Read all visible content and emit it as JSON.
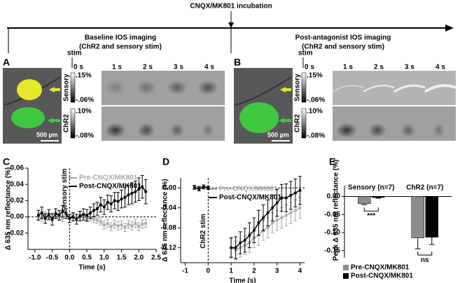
{
  "header": {
    "incubation": "CNQX/MK801 incubation",
    "baseline": "Baseline IOS imaging",
    "baseline_sub": "(ChR2 and sensory stim)",
    "post": "Post-antagonist IOS imaging",
    "post_sub": "(ChR2 and sensory stim)"
  },
  "panels": [
    {
      "letter": "A",
      "stim": "stim",
      "times": [
        "0 s",
        "1 s",
        "2 s",
        "3 s",
        "4 s"
      ],
      "scale": "500 µm",
      "rows": [
        {
          "name": "Sensory",
          "max": ".15%",
          "min": "-.06%"
        },
        {
          "name": "ChR2",
          "max": ".10%",
          "min": "-.08%"
        }
      ]
    },
    {
      "letter": "B",
      "stim": "stim",
      "times": [
        "0 s",
        "1 s",
        "2 s",
        "3 s",
        "4 s"
      ],
      "scale": "500 µm",
      "rows": [
        {
          "name": "Sensory",
          "max": ".15%",
          "min": "-.06%"
        },
        {
          "name": "ChR2",
          "max": ".10%",
          "min": "-.08%"
        }
      ]
    }
  ],
  "chart_data": [
    {
      "type": "line",
      "letter": "C",
      "x_label": "Time (s)",
      "y_label": "Δ 635 nm reflectance (%)",
      "annotation": "Sensory stim",
      "xlim": [
        -1.2,
        2.5
      ],
      "ylim": [
        -0.04,
        0.06
      ],
      "xticks": [
        {
          "value": -1,
          "label": "-1.0"
        },
        -0.5,
        {
          "value": 0,
          "label": "0.0"
        },
        0.5,
        {
          "value": 1,
          "label": "1.0"
        },
        1.5,
        {
          "value": 2,
          "label": "2.0"
        },
        2.5
      ],
      "yticks": [
        -0.02,
        {
          "value": 0,
          "label": "0.00"
        },
        0.02,
        0.04,
        0.06
      ],
      "x": [
        -0.9,
        -0.8,
        -0.7,
        -0.6,
        -0.5,
        -0.4,
        -0.3,
        -0.2,
        -0.1,
        0,
        0.1,
        0.2,
        0.3,
        0.4,
        0.5,
        0.6,
        0.7,
        0.8,
        0.9,
        1.0,
        1.1,
        1.2,
        1.3,
        1.4,
        1.5,
        1.6,
        1.7,
        1.8,
        1.9,
        2.0,
        2.1,
        2.2
      ],
      "series": [
        {
          "name": "Pre-CNQX/MK801",
          "color": "#aaaaaa",
          "values": [
            0.001,
            -0.002,
            0.002,
            0.0,
            -0.001,
            0.003,
            0.001,
            -0.002,
            0.002,
            0.0,
            0.001,
            -0.001,
            0.002,
            0.0,
            -0.002,
            -0.001,
            -0.003,
            -0.004,
            -0.006,
            -0.01,
            -0.008,
            -0.012,
            -0.009,
            -0.011,
            -0.01,
            -0.013,
            -0.009,
            -0.011,
            -0.008,
            -0.012,
            -0.009,
            -0.008
          ],
          "errors": [
            0.004,
            0.004,
            0.004,
            0.004,
            0.004,
            0.004,
            0.004,
            0.004,
            0.004,
            0.003,
            0.003,
            0.004,
            0.004,
            0.004,
            0.004,
            0.004,
            0.004,
            0.004,
            0.004,
            0.005,
            0.005,
            0.005,
            0.005,
            0.005,
            0.005,
            0.005,
            0.005,
            0.005,
            0.005,
            0.005,
            0.005,
            0.005
          ]
        },
        {
          "name": "Post-CNQX/MK801",
          "color": "#000000",
          "values": [
            0.002,
            0.005,
            -0.002,
            0.003,
            -0.003,
            0.004,
            0.002,
            0.007,
            0.004,
            -0.002,
            0.0,
            -0.003,
            0.001,
            0.003,
            0.002,
            0.005,
            0.008,
            0.01,
            0.015,
            0.012,
            0.018,
            0.016,
            0.02,
            0.019,
            0.022,
            0.024,
            0.027,
            0.029,
            0.031,
            0.034,
            0.037,
            0.031
          ],
          "errors": [
            0.006,
            0.007,
            0.006,
            0.006,
            0.007,
            0.006,
            0.006,
            0.007,
            0.006,
            0.005,
            0.005,
            0.006,
            0.006,
            0.007,
            0.007,
            0.007,
            0.008,
            0.008,
            0.009,
            0.009,
            0.009,
            0.01,
            0.01,
            0.011,
            0.011,
            0.012,
            0.012,
            0.013,
            0.013,
            0.014,
            0.014,
            0.015
          ]
        }
      ]
    },
    {
      "type": "line",
      "letter": "D",
      "x_label": "Time (s)",
      "y_label": "Δ 635 nm reflectance (%)",
      "annotation": "ChR2 stim",
      "xlim": [
        -1.2,
        4.2
      ],
      "ylim": [
        -0.15,
        0.02
      ],
      "xticks": [
        -1,
        0,
        1,
        2,
        3,
        4
      ],
      "yticks": [
        {
          "value": 0,
          "label": "0.00"
        },
        -0.04,
        -0.08,
        -0.12
      ],
      "x": [
        -0.6,
        -0.4,
        -0.2,
        0,
        0.5,
        1.0,
        1.2,
        1.4,
        1.6,
        1.8,
        2.0,
        2.2,
        2.4,
        2.6,
        2.8,
        3.0,
        3.2,
        3.4,
        3.6,
        3.8,
        4.0
      ],
      "series": [
        {
          "name": "Pre-CNQX/MK801",
          "color": "#aaaaaa",
          "values": [
            0.002,
            0.001,
            0.003,
            0.001,
            null,
            -0.12,
            -0.125,
            -0.12,
            -0.115,
            -0.11,
            -0.1,
            -0.095,
            -0.085,
            -0.08,
            -0.07,
            -0.065,
            -0.06,
            -0.055,
            -0.05,
            -0.045,
            -0.04
          ],
          "errors": [
            0.003,
            0.003,
            0.003,
            0.003,
            null,
            0.018,
            0.018,
            0.019,
            0.019,
            0.02,
            0.02,
            0.02,
            0.02,
            0.02,
            0.02,
            0.02,
            0.021,
            0.021,
            0.021,
            0.021,
            0.021
          ]
        },
        {
          "name": "Post-CNQX/MK801",
          "color": "#000000",
          "values": [
            0.001,
            -0.002,
            0.002,
            0.0,
            null,
            -0.12,
            -0.12,
            -0.11,
            -0.105,
            -0.095,
            -0.085,
            -0.07,
            -0.06,
            -0.05,
            -0.04,
            -0.03,
            -0.02,
            -0.02,
            -0.015,
            -0.01,
            -0.005
          ],
          "errors": [
            0.004,
            0.004,
            0.004,
            0.003,
            null,
            0.02,
            0.022,
            0.022,
            0.024,
            0.025,
            0.025,
            0.025,
            0.026,
            0.026,
            0.026,
            0.027,
            0.027,
            0.028,
            0.028,
            0.028,
            0.028
          ]
        }
      ]
    },
    {
      "type": "bar",
      "letter": "E",
      "y_label": "Peak Δ 635 nm reflectance (%)",
      "categories": [
        "Sensory (n=7)",
        "ChR2 (n=7)"
      ],
      "annotations": [
        "***",
        "ns"
      ],
      "ylim": [
        -0.17,
        0.03
      ],
      "yticks": [
        {
          "value": 0,
          "label": "0.00"
        },
        -0.05,
        {
          "value": -0.1,
          "label": "-0.10"
        },
        -0.15
      ],
      "series": [
        {
          "name": "Pre-CNQX/MK801",
          "color": "#8c8c8c",
          "values": [
            -0.02,
            -0.115
          ],
          "errors": [
            0.003,
            0.03
          ]
        },
        {
          "name": "Post-CNQX/MK801",
          "color": "#000000",
          "values": [
            -0.003,
            -0.113
          ],
          "errors": [
            0.002,
            0.02
          ]
        }
      ]
    }
  ]
}
